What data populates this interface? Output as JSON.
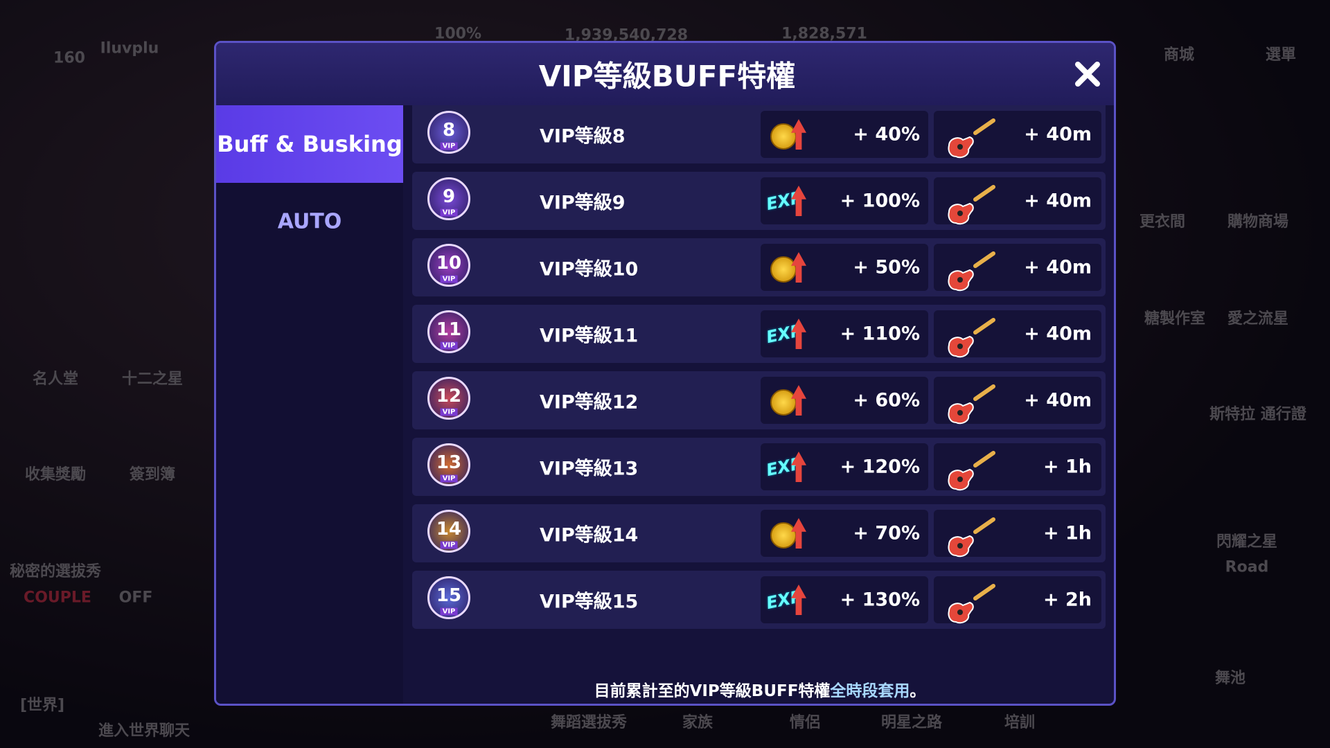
{
  "background": {
    "labels": [
      {
        "text": "Iluvplu"
      },
      {
        "text": "160"
      },
      {
        "text": "100%"
      },
      {
        "text": "1,939,540,728"
      },
      {
        "text": "1,828,571"
      },
      {
        "text": "商城"
      },
      {
        "text": "選單"
      },
      {
        "text": "更衣間"
      },
      {
        "text": "購物商場"
      },
      {
        "text": "糖製作室"
      },
      {
        "text": "愛之流星"
      },
      {
        "text": "斯特拉 通行證"
      },
      {
        "text": "名人堂"
      },
      {
        "text": "十二之星"
      },
      {
        "text": "收集獎勵"
      },
      {
        "text": "簽到簿"
      },
      {
        "text": "秘密的選拔秀"
      },
      {
        "text": "COUPLE"
      },
      {
        "text": "OFF"
      },
      {
        "text": "[世界]"
      },
      {
        "text": "進入世界聊天"
      },
      {
        "text": "舞蹈選拔秀"
      },
      {
        "text": "家族"
      },
      {
        "text": "情侶"
      },
      {
        "text": "明星之路"
      },
      {
        "text": "培訓"
      },
      {
        "text": "舞池"
      },
      {
        "text": "閃耀之星"
      },
      {
        "text": "Road"
      }
    ]
  },
  "modal": {
    "title": "VIP等級BUFF特權",
    "tabs": [
      "Buff & Busking",
      "AUTO"
    ],
    "badge_text": "VIP",
    "exp_icon": "EXP",
    "rows": [
      {
        "level": "8",
        "label": "VIP等級8",
        "buff_type": "gold",
        "buff": "+ 40%",
        "busking": "+ 40m"
      },
      {
        "level": "9",
        "label": "VIP等級9",
        "buff_type": "exp",
        "buff": "+ 100%",
        "busking": "+ 40m"
      },
      {
        "level": "10",
        "label": "VIP等級10",
        "buff_type": "gold",
        "buff": "+ 50%",
        "busking": "+ 40m"
      },
      {
        "level": "11",
        "label": "VIP等級11",
        "buff_type": "exp",
        "buff": "+ 110%",
        "busking": "+ 40m"
      },
      {
        "level": "12",
        "label": "VIP等級12",
        "buff_type": "gold",
        "buff": "+ 60%",
        "busking": "+ 40m"
      },
      {
        "level": "13",
        "label": "VIP等級13",
        "buff_type": "exp",
        "buff": "+ 120%",
        "busking": "+ 1h"
      },
      {
        "level": "14",
        "label": "VIP等級14",
        "buff_type": "gold",
        "buff": "+ 70%",
        "busking": "+ 1h"
      },
      {
        "level": "15",
        "label": "VIP等級15",
        "buff_type": "exp",
        "buff": "+ 130%",
        "busking": "+ 2h"
      }
    ],
    "footer": {
      "text": "目前累計至的VIP等級BUFF特權",
      "highlight": "全時段套用",
      "end": "。"
    }
  }
}
